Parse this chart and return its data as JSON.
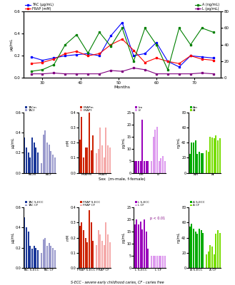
{
  "line_x": [
    27,
    30,
    33,
    36,
    39,
    42,
    45,
    48,
    51,
    54,
    57,
    60,
    63,
    66,
    69,
    72,
    75
  ],
  "TAC": [
    0.19,
    0.16,
    0.18,
    0.2,
    0.21,
    0.22,
    0.2,
    0.38,
    0.5,
    0.2,
    0.22,
    0.32,
    0.15,
    0.1,
    0.2,
    0.19,
    0.18
  ],
  "FRAP": [
    0.13,
    0.14,
    0.17,
    0.22,
    0.24,
    0.2,
    0.22,
    0.3,
    0.35,
    0.25,
    0.14,
    0.18,
    0.15,
    0.13,
    0.2,
    0.17,
    0.16
  ],
  "A_right": [
    8,
    10,
    16,
    40,
    52,
    30,
    55,
    38,
    60,
    20,
    60,
    40,
    10,
    60,
    40,
    60,
    55
  ],
  "L_right": [
    5,
    5,
    6,
    5,
    5,
    5,
    5,
    9,
    8,
    12,
    10,
    5,
    5,
    5,
    5,
    6,
    5
  ],
  "bar2_TACm": [
    0.35,
    0.25,
    0.2,
    0.15,
    0.35,
    0.3,
    0.25,
    0.2
  ],
  "bar2_TACf": [
    0.1,
    0.38,
    0.42,
    0.3,
    0.28,
    0.22,
    0.18,
    0.15
  ],
  "bar2_FRAPm": [
    0.22,
    0.37,
    0.1,
    0.17,
    0.17,
    0.4,
    0.15,
    0.25
  ],
  "bar2_FRAPf": [
    0.13,
    0.16,
    0.3,
    0.18,
    0.1,
    0.3,
    0.18,
    0.17
  ],
  "bar2_Lm": [
    5,
    5,
    5,
    5,
    22,
    5,
    5,
    5
  ],
  "bar2_Lf": [
    5,
    15,
    18,
    19,
    5,
    6,
    7,
    5
  ],
  "bar2_Am": [
    25,
    40,
    40,
    43,
    25,
    28,
    26,
    26
  ],
  "bar2_Af": [
    30,
    28,
    48,
    47,
    46,
    50,
    43,
    46
  ],
  "bar3_TACsecc": [
    0.5,
    0.4,
    0.36,
    0.22,
    0.19,
    0.22,
    0.2,
    0.18
  ],
  "bar3_TACcf": [
    0.15,
    0.28,
    0.3,
    0.22,
    0.25,
    0.22,
    0.2,
    0.18
  ],
  "bar3_FRAPsecc": [
    0.28,
    0.3,
    0.25,
    0.2,
    0.17,
    0.38,
    0.3,
    0.18
  ],
  "bar3_FRAPcf": [
    0.15,
    0.25,
    0.22,
    0.18,
    0.15,
    0.3,
    0.22,
    0.17
  ],
  "bar3_Lsecc": [
    18,
    20,
    18,
    19,
    16,
    20,
    15,
    8
  ],
  "bar3_Lcf": [
    5,
    5,
    5,
    5,
    5,
    5,
    5,
    5
  ],
  "bar3_Asecc": [
    55,
    58,
    52,
    48,
    45,
    52,
    50,
    46
  ],
  "bar3_Acf": [
    18,
    22,
    30,
    28,
    18,
    45,
    50,
    46
  ],
  "col_blue_dark": "#1a3799",
  "col_blue_light": "#9999cc",
  "col_red_dark": "#cc2200",
  "col_red_light": "#f5aaaa",
  "col_purple_dark": "#9900bb",
  "col_purple_light": "#dd99ee",
  "col_green_dark": "#00aa00",
  "col_green_light": "#77dd00",
  "footnote": "S-ECC - severe early childhood caries, CF - caries free"
}
